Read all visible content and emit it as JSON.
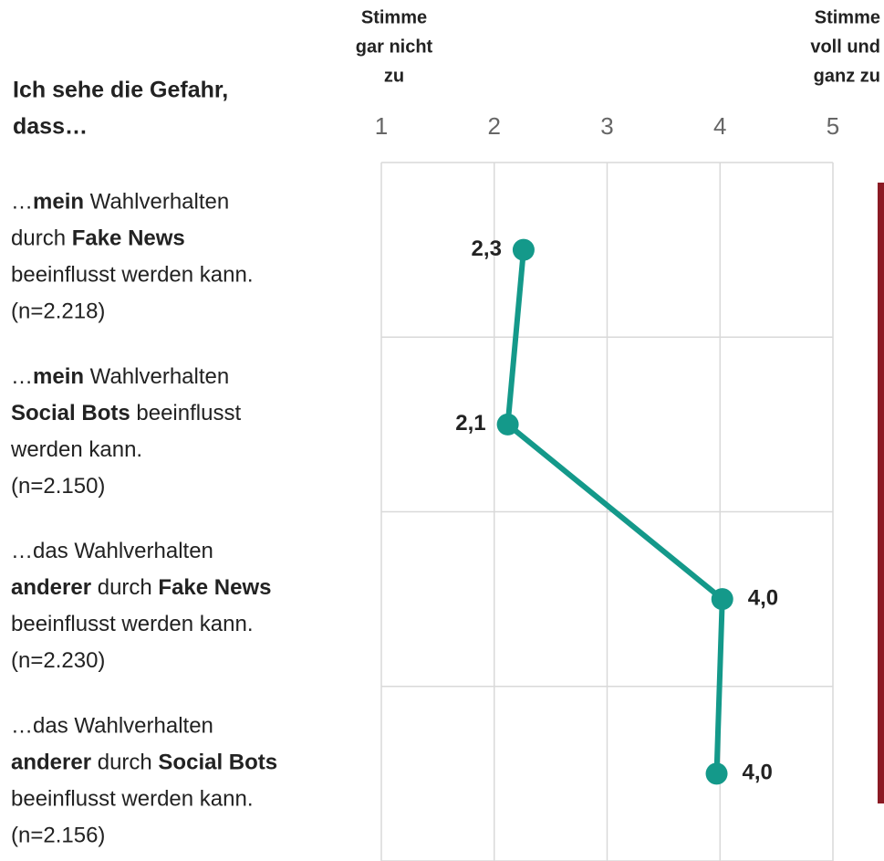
{
  "chart_data": {
    "type": "line",
    "orientation": "horizontal",
    "axis_title": [
      "Ich sehe die Gefahr,",
      "dass…"
    ],
    "x_end_labels": [
      [
        "Stimme",
        "gar nicht",
        "zu"
      ],
      [
        "Stimme",
        "voll und",
        "ganz zu"
      ]
    ],
    "categories": [
      {
        "lines": [
          [
            {
              "text": "…",
              "bold": false
            },
            {
              "text": "mein",
              "bold": true
            },
            {
              "text": " Wahlverhalten",
              "bold": false
            }
          ],
          [
            {
              "text": "durch ",
              "bold": false
            },
            {
              "text": "Fake News",
              "bold": true
            }
          ],
          [
            {
              "text": "beeinflusst werden kann.",
              "bold": false
            }
          ],
          [
            {
              "text": "(n=2.218)",
              "bold": false
            }
          ]
        ]
      },
      {
        "lines": [
          [
            {
              "text": "…",
              "bold": false
            },
            {
              "text": "mein",
              "bold": true
            },
            {
              "text": " Wahlverhalten",
              "bold": false
            }
          ],
          [
            {
              "text": "Social Bots",
              "bold": true
            },
            {
              "text": " beeinflusst",
              "bold": false
            }
          ],
          [
            {
              "text": "werden kann.",
              "bold": false
            }
          ],
          [
            {
              "text": "(n=2.150)",
              "bold": false
            }
          ]
        ]
      },
      {
        "lines": [
          [
            {
              "text": "…das Wahlverhalten",
              "bold": false
            }
          ],
          [
            {
              "text": "anderer",
              "bold": true
            },
            {
              "text": " durch ",
              "bold": false
            },
            {
              "text": "Fake News",
              "bold": true
            }
          ],
          [
            {
              "text": "beeinflusst werden kann.",
              "bold": false
            }
          ],
          [
            {
              "text": "(n=2.230)",
              "bold": false
            }
          ]
        ]
      },
      {
        "lines": [
          [
            {
              "text": "…das Wahlverhalten",
              "bold": false
            }
          ],
          [
            {
              "text": "anderer",
              "bold": true
            },
            {
              "text": " durch ",
              "bold": false
            },
            {
              "text": "Social Bots",
              "bold": true
            }
          ],
          [
            {
              "text": "beeinflusst werden kann.",
              "bold": false
            }
          ],
          [
            {
              "text": "(n=2.156)",
              "bold": false
            }
          ]
        ]
      }
    ],
    "values": [
      2.26,
      2.12,
      4.02,
      3.97
    ],
    "value_labels": [
      "2,3",
      "2,1",
      "4,0",
      "4,0"
    ],
    "color": "#14998a",
    "xlim": [
      1,
      5
    ],
    "xticks": [
      1,
      2,
      3,
      4,
      5
    ],
    "grid": true
  }
}
